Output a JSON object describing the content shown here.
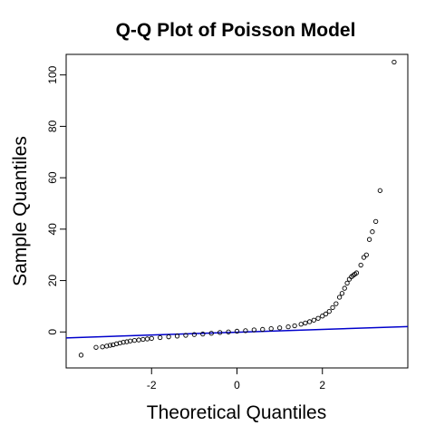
{
  "chart_data": {
    "type": "scatter",
    "title": "Q-Q Plot of Poisson Model",
    "xlabel": "Theoretical Quantiles",
    "ylabel": "Sample Quantiles",
    "xlim": [
      -4.0,
      4.0
    ],
    "ylim": [
      -14.0,
      108.0
    ],
    "x_ticks": [
      -2,
      0,
      2
    ],
    "x_tick_labels": [
      "-2",
      "0",
      "2"
    ],
    "y_ticks": [
      0,
      20,
      40,
      60,
      80,
      100
    ],
    "y_tick_labels": [
      "0",
      "20",
      "40",
      "60",
      "80",
      "100"
    ],
    "grid": false,
    "legend": "none",
    "marker": "open-circle",
    "point_color": "#000000",
    "reference_line": {
      "color": "#0000cc",
      "x": [
        -4.0,
        4.0
      ],
      "y": [
        -2.3,
        2.1
      ]
    },
    "points": {
      "x": [
        -3.65,
        -3.3,
        -3.15,
        -3.05,
        -2.97,
        -2.9,
        -2.82,
        -2.74,
        -2.66,
        -2.58,
        -2.5,
        -2.4,
        -2.3,
        -2.2,
        -2.1,
        -2.0,
        -1.8,
        -1.6,
        -1.4,
        -1.2,
        -1.0,
        -0.8,
        -0.6,
        -0.4,
        -0.2,
        0.0,
        0.2,
        0.4,
        0.6,
        0.8,
        1.0,
        1.2,
        1.35,
        1.5,
        1.6,
        1.7,
        1.8,
        1.9,
        2.0,
        2.08,
        2.16,
        2.24,
        2.32,
        2.4,
        2.46,
        2.52,
        2.58,
        2.63,
        2.68,
        2.72,
        2.76,
        2.8,
        2.9,
        2.97,
        3.03,
        3.1,
        3.17,
        3.25,
        3.35,
        3.68
      ],
      "y": [
        -9.0,
        -6.0,
        -5.8,
        -5.5,
        -5.2,
        -5.0,
        -4.6,
        -4.3,
        -4.0,
        -3.8,
        -3.5,
        -3.3,
        -3.1,
        -2.9,
        -2.7,
        -2.5,
        -2.2,
        -1.9,
        -1.6,
        -1.3,
        -1.0,
        -0.8,
        -0.5,
        -0.2,
        0.0,
        0.3,
        0.5,
        0.8,
        1.0,
        1.3,
        1.6,
        2.0,
        2.4,
        3.0,
        3.5,
        4.0,
        4.6,
        5.3,
        6.2,
        7.0,
        8.0,
        9.5,
        11.0,
        13.5,
        15.0,
        17.0,
        19.0,
        20.5,
        21.5,
        22.0,
        22.5,
        23.0,
        26.0,
        29.0,
        30.0,
        36.0,
        39.0,
        43.0,
        55.0,
        105.0
      ]
    }
  }
}
